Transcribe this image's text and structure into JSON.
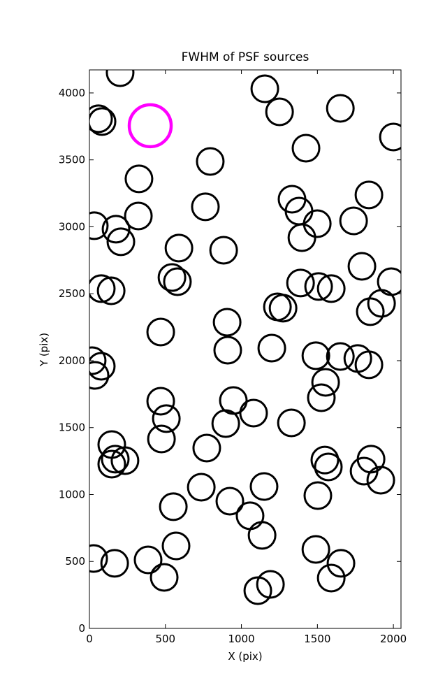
{
  "chart_data": {
    "type": "scatter",
    "title": "FWHM of PSF sources",
    "x_label": "X (pix)",
    "y_label": "Y (pix)",
    "xlim": [
      0,
      2050
    ],
    "ylim": [
      0,
      4172
    ],
    "xticks": [
      0,
      500,
      1000,
      1500,
      2000
    ],
    "yticks": [
      0,
      500,
      1000,
      1500,
      2000,
      2500,
      3000,
      3500,
      4000
    ],
    "grid": false,
    "series": [
      {
        "color": "#000000",
        "x": [
          202,
          60,
          83,
          1154,
          1251,
          1651,
          2000,
          1425,
          795,
          326,
          1333,
          1839,
          763,
          1379,
          1738,
          322,
          32,
          175,
          1499,
          207,
          1398,
          589,
          883,
          1793,
          543,
          579,
          1389,
          1508,
          1591,
          1986,
          78,
          143,
          1237,
          1274,
          1922,
          1848,
          906,
          469,
          1200,
          910,
          1490,
          1651,
          1766,
          1839,
          18,
          78,
          37,
          1554,
          1526,
          469,
          947,
          1080,
          506,
          897,
          1329,
          147,
          474,
          772,
          1549,
          1853,
          170,
          147,
          234,
          1572,
          1807,
          1917,
          736,
          1149,
          1503,
          552,
          924,
          1057,
          1136,
          570,
          1655,
          28,
          166,
          386,
          1490,
          492,
          1591,
          1191,
          1108
        ],
        "y": [
          4151,
          3807,
          3786,
          4031,
          3859,
          3885,
          3671,
          3587,
          3488,
          3358,
          3206,
          3238,
          3149,
          3117,
          3044,
          3081,
          3008,
          2982,
          3023,
          2888,
          2919,
          2841,
          2825,
          2705,
          2621,
          2590,
          2580,
          2554,
          2538,
          2590,
          2538,
          2522,
          2402,
          2392,
          2428,
          2366,
          2287,
          2214,
          2094,
          2078,
          2037,
          2031,
          2016,
          1969,
          2000,
          1958,
          1890,
          1838,
          1723,
          1697,
          1702,
          1608,
          1567,
          1530,
          1535,
          1373,
          1415,
          1347,
          1258,
          1264,
          1264,
          1227,
          1253,
          1206,
          1175,
          1107,
          1055,
          1060,
          992,
          909,
          950,
          841,
          695,
          616,
          486,
          522,
          486,
          512,
          590,
          381,
          376,
          329,
          282
        ]
      },
      {
        "color": "#ff00ff",
        "x": [
          400
        ],
        "y": [
          3755
        ]
      }
    ]
  }
}
